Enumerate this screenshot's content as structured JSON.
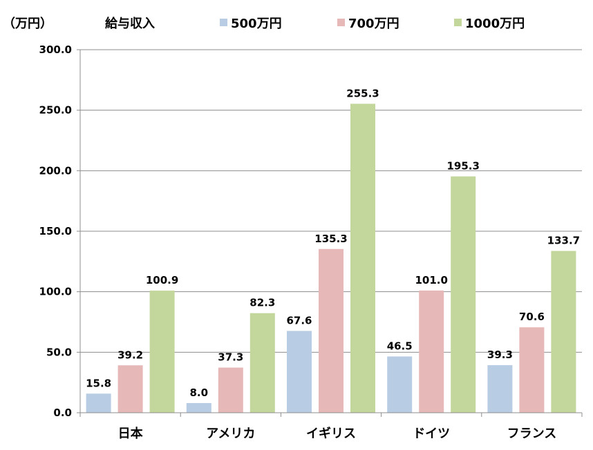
{
  "chart_data": {
    "type": "bar",
    "title": "給与収入",
    "unit_label": "（万円）",
    "categories": [
      "日本",
      "アメリカ",
      "イギリス",
      "ドイツ",
      "フランス"
    ],
    "series": [
      {
        "name": "500万円",
        "color": "#b8cce4",
        "values": [
          15.8,
          8.0,
          67.6,
          46.5,
          39.3
        ]
      },
      {
        "name": "700万円",
        "color": "#e6b9b8",
        "values": [
          39.2,
          37.3,
          135.3,
          101.0,
          70.6
        ]
      },
      {
        "name": "1000万円",
        "color": "#c3d69b",
        "values": [
          100.9,
          82.3,
          255.3,
          195.3,
          133.7
        ]
      }
    ],
    "y_ticks": [
      "0.0",
      "50.0",
      "100.0",
      "150.0",
      "200.0",
      "250.0",
      "300.0"
    ],
    "ylim": [
      0,
      300
    ],
    "grid": true,
    "legend_position": "top"
  }
}
